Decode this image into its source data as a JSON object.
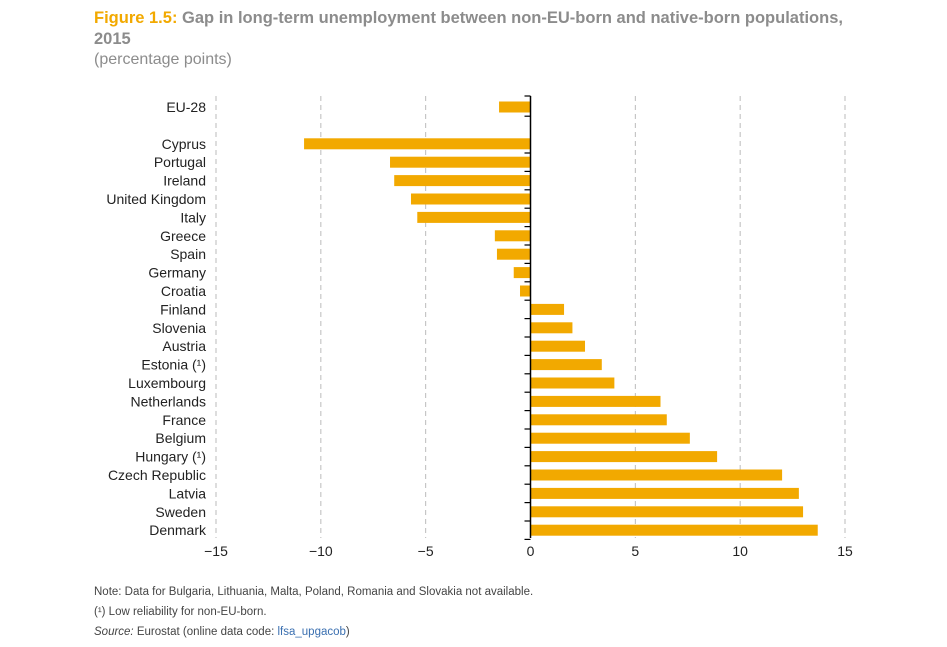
{
  "header": {
    "figure_label": "Figure 1.5:",
    "title_text": "Gap in long-term unemployment between non-EU-born and native-born populations, 2015",
    "unit": "(percentage points)"
  },
  "notes": {
    "note": "Note: Data for Bulgaria, Lithuania, Malta, Poland, Romania and Slovakia not available.",
    "footnote": "(¹) Low reliability for non-EU-born.",
    "source_label": "Source:",
    "source_text": " Eurostat (online data code: ",
    "source_code": "lfsa_upgacob",
    "source_close": ")"
  },
  "colors": {
    "bar": "#f2a900",
    "grid": "#bbbbbb",
    "axis": "#000000",
    "text": "#222222"
  },
  "chart_data": {
    "type": "bar",
    "orientation": "horizontal",
    "title": "Gap in long-term unemployment between non-EU-born and native-born populations, 2015",
    "xlabel": "",
    "ylabel": "",
    "xlim": [
      -15,
      15
    ],
    "xticks": [
      -15,
      -10,
      -5,
      0,
      5,
      10,
      15
    ],
    "xtick_labels": [
      "−15",
      "−10",
      "−5",
      "0",
      "5",
      "10",
      "15"
    ],
    "grid": "vertical dashed",
    "categories": [
      "EU-28",
      "Cyprus",
      "Portugal",
      "Ireland",
      "United Kingdom",
      "Italy",
      "Greece",
      "Spain",
      "Germany",
      "Croatia",
      "Finland",
      "Slovenia",
      "Austria",
      "Estonia (¹)",
      "Luxembourg",
      "Netherlands",
      "France",
      "Belgium",
      "Hungary (¹)",
      "Czech Republic",
      "Latvia",
      "Sweden",
      "Denmark"
    ],
    "values": [
      -1.5,
      -10.8,
      -6.7,
      -6.5,
      -5.7,
      -5.4,
      -1.7,
      -1.6,
      -0.8,
      -0.5,
      1.6,
      2.0,
      2.6,
      3.4,
      4.0,
      6.2,
      6.5,
      7.6,
      8.9,
      12.0,
      12.8,
      13.0,
      13.7
    ]
  }
}
